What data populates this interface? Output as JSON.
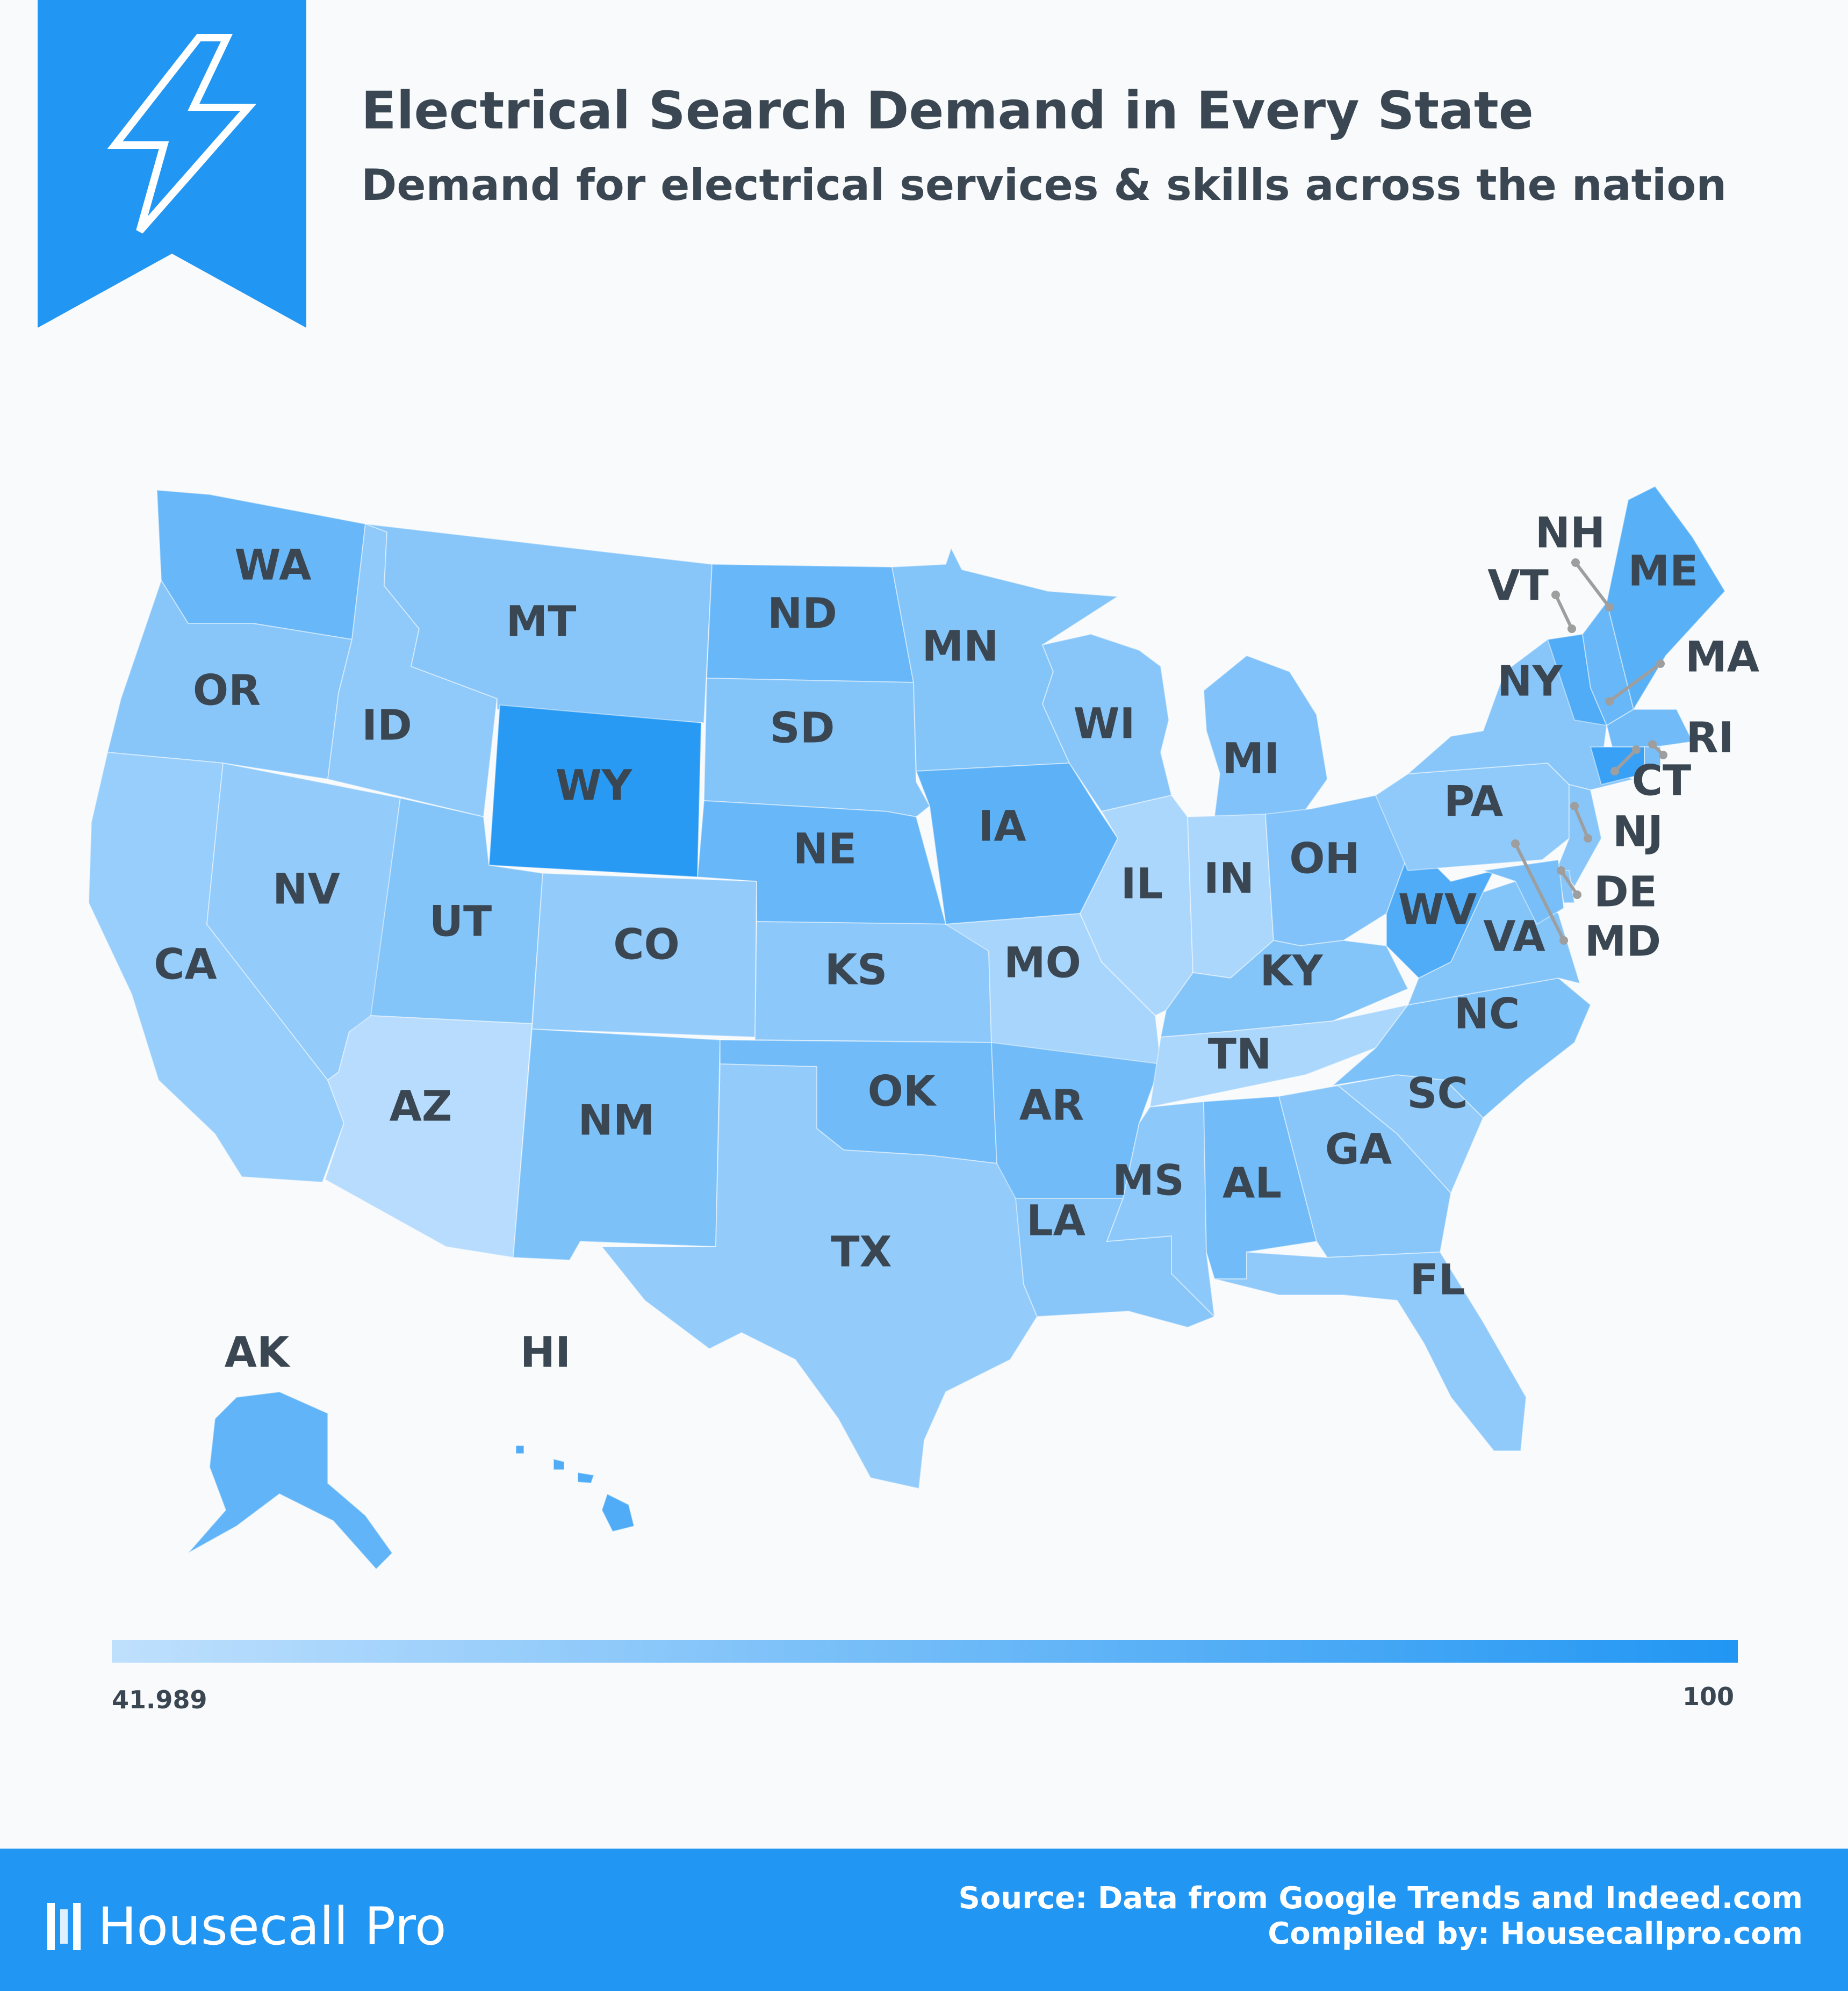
{
  "header": {
    "title": "Electrical Search Demand in Every State",
    "subtitle": "Demand for electrical services & skills across the nation",
    "icon": "lightning-bolt-icon"
  },
  "legend": {
    "min_label": "41.989",
    "max_label": "100",
    "color_low": "#bfe0fd",
    "color_high": "#2196f3"
  },
  "colors": {
    "accent": "#2196f3",
    "text": "#3a4752",
    "background": "#f8fafb"
  },
  "map": {
    "states": [
      {
        "abbr": "WA",
        "tone": 0.55
      },
      {
        "abbr": "OR",
        "tone": 0.35
      },
      {
        "abbr": "CA",
        "tone": 0.25
      },
      {
        "abbr": "ID",
        "tone": 0.3
      },
      {
        "abbr": "NV",
        "tone": 0.28
      },
      {
        "abbr": "MT",
        "tone": 0.35
      },
      {
        "abbr": "WY",
        "tone": 0.95
      },
      {
        "abbr": "UT",
        "tone": 0.38
      },
      {
        "abbr": "AZ",
        "tone": 0.05
      },
      {
        "abbr": "CO",
        "tone": 0.28
      },
      {
        "abbr": "NM",
        "tone": 0.42
      },
      {
        "abbr": "ND",
        "tone": 0.55
      },
      {
        "abbr": "SD",
        "tone": 0.38
      },
      {
        "abbr": "NE",
        "tone": 0.55
      },
      {
        "abbr": "KS",
        "tone": 0.32
      },
      {
        "abbr": "OK",
        "tone": 0.5
      },
      {
        "abbr": "TX",
        "tone": 0.28
      },
      {
        "abbr": "MN",
        "tone": 0.38
      },
      {
        "abbr": "IA",
        "tone": 0.62
      },
      {
        "abbr": "MO",
        "tone": 0.15
      },
      {
        "abbr": "AR",
        "tone": 0.5
      },
      {
        "abbr": "LA",
        "tone": 0.35
      },
      {
        "abbr": "WI",
        "tone": 0.35
      },
      {
        "abbr": "IL",
        "tone": 0.12
      },
      {
        "abbr": "MI",
        "tone": 0.4
      },
      {
        "abbr": "IN",
        "tone": 0.12
      },
      {
        "abbr": "OH",
        "tone": 0.4
      },
      {
        "abbr": "KY",
        "tone": 0.38
      },
      {
        "abbr": "TN",
        "tone": 0.12
      },
      {
        "abbr": "MS",
        "tone": 0.32
      },
      {
        "abbr": "AL",
        "tone": 0.5
      },
      {
        "abbr": "GA",
        "tone": 0.35
      },
      {
        "abbr": "FL",
        "tone": 0.3
      },
      {
        "abbr": "SC",
        "tone": 0.28
      },
      {
        "abbr": "NC",
        "tone": 0.42
      },
      {
        "abbr": "VA",
        "tone": 0.38
      },
      {
        "abbr": "WV",
        "tone": 0.7
      },
      {
        "abbr": "PA",
        "tone": 0.3
      },
      {
        "abbr": "NY",
        "tone": 0.35
      },
      {
        "abbr": "VT",
        "tone": 0.7
      },
      {
        "abbr": "NH",
        "tone": 0.55
      },
      {
        "abbr": "ME",
        "tone": 0.65
      },
      {
        "abbr": "MA",
        "tone": 0.5
      },
      {
        "abbr": "RI",
        "tone": 0.45
      },
      {
        "abbr": "CT",
        "tone": 0.85
      },
      {
        "abbr": "NJ",
        "tone": 0.35
      },
      {
        "abbr": "DE",
        "tone": 0.35
      },
      {
        "abbr": "MD",
        "tone": 0.45
      },
      {
        "abbr": "AK",
        "tone": 0.6
      },
      {
        "abbr": "HI",
        "tone": 0.7
      }
    ]
  },
  "footer": {
    "brand": "Housecall Pro",
    "source_line": "Source: Data from Google Trends and Indeed.com",
    "compiled_line": "Compiled by: Housecallpro.com"
  }
}
